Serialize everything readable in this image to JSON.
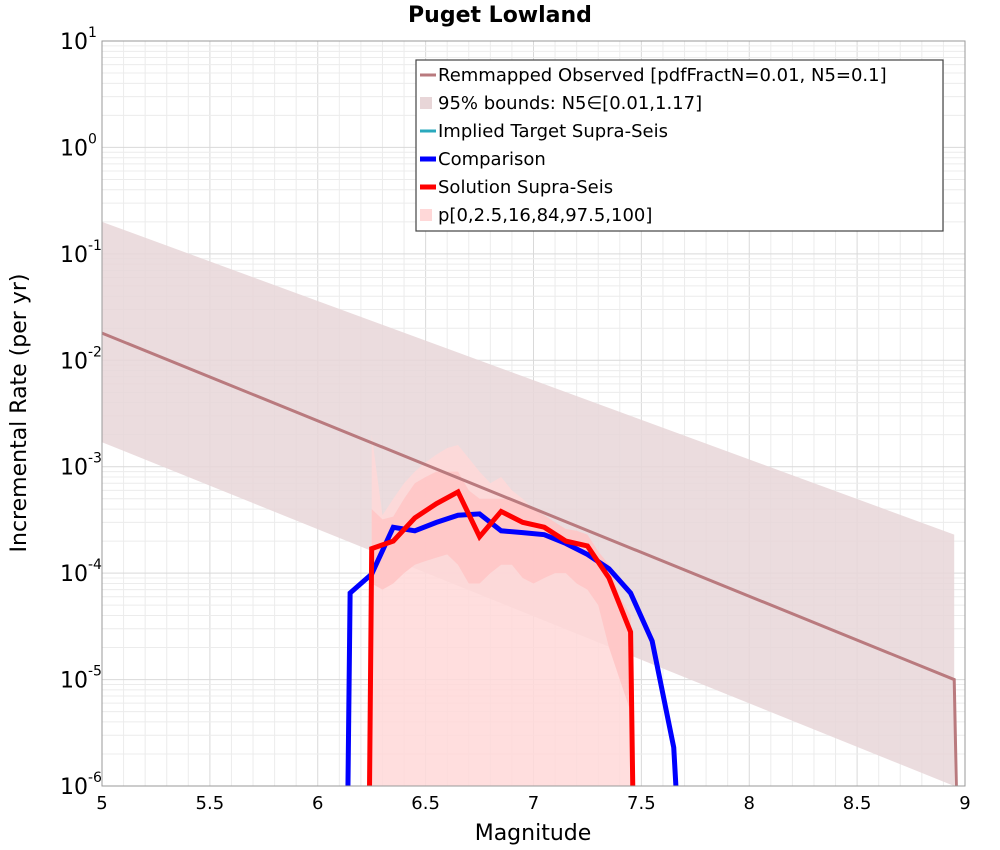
{
  "chart_data": {
    "type": "line",
    "title": "Puget Lowland",
    "xlabel": "Magnitude",
    "ylabel": "Incremental Rate (per yr)",
    "xlim": [
      5,
      9
    ],
    "ylim": [
      1e-06,
      10
    ],
    "y_scale": "log",
    "grid": true,
    "legend_placement": "top-right",
    "x_ticks": [
      "5",
      "5.5",
      "6",
      "6.5",
      "7",
      "7.5",
      "8",
      "8.5",
      "9"
    ],
    "y_ticks": [
      {
        "base": "10",
        "exp": "-6",
        "value": 1e-06
      },
      {
        "base": "10",
        "exp": "-5",
        "value": 1e-05
      },
      {
        "base": "10",
        "exp": "-4",
        "value": 0.0001
      },
      {
        "base": "10",
        "exp": "-3",
        "value": 0.001
      },
      {
        "base": "10",
        "exp": "-2",
        "value": 0.01
      },
      {
        "base": "10",
        "exp": "-1",
        "value": 0.1
      },
      {
        "base": "10",
        "exp": "0",
        "value": 1
      },
      {
        "base": "10",
        "exp": "1",
        "value": 10
      }
    ],
    "legend": [
      {
        "label": "Remmapped Observed [pdfFractN=0.01, N5=0.1]",
        "kind": "line",
        "color": "#b97a7e",
        "width": 3
      },
      {
        "label": "95% bounds: N5∈[0.01,1.17]",
        "kind": "band",
        "color": "#e8d6d8"
      },
      {
        "label": "Implied Target Supra-Seis",
        "kind": "line",
        "color": "#2aa9bd",
        "width": 3
      },
      {
        "label": "Comparison",
        "kind": "line",
        "color": "#0000ff",
        "width": 5
      },
      {
        "label": "Solution Supra-Seis",
        "kind": "line",
        "color": "#ff0000",
        "width": 5
      },
      {
        "label": "p[0,2.5,16,84,97.5,100]",
        "kind": "band",
        "color": "#ffd8d8"
      }
    ],
    "series": [
      {
        "name": "Remmapped Observed [pdfFractN=0.01, N5=0.1]",
        "kind": "line",
        "color": "#b97a7e",
        "width": 3,
        "x": [
          5.0,
          8.95,
          8.96
        ],
        "y": [
          0.018,
          1e-05,
          1e-06
        ]
      },
      {
        "name": "95% bounds: N5∈[0.01,1.17]",
        "kind": "band",
        "color": "#e8d6d8",
        "x": [
          5.0,
          8.95
        ],
        "lower": [
          0.0017,
          1e-06
        ],
        "upper": [
          0.2,
          0.00023
        ]
      },
      {
        "name": "p[0,2.5,16,84,97.5,100]",
        "kind": "band",
        "color": "#ffd8d8",
        "x": [
          6.25,
          6.3,
          6.35,
          6.4,
          6.45,
          6.5,
          6.55,
          6.6,
          6.65,
          6.7,
          6.75,
          6.8,
          6.85,
          6.9,
          6.95,
          7.0,
          7.05,
          7.1,
          7.15,
          7.2,
          7.25,
          7.3,
          7.35,
          7.4,
          7.45
        ],
        "lower": [
          1e-06,
          1e-06,
          1e-06,
          1e-06,
          1e-06,
          1e-06,
          1e-06,
          1e-06,
          1e-06,
          1e-06,
          1e-06,
          1e-06,
          1e-06,
          1e-06,
          1e-06,
          1e-06,
          1e-06,
          1e-06,
          1e-06,
          1e-06,
          1e-06,
          1e-06,
          1e-06,
          1e-06,
          1e-06
        ],
        "upper": [
          0.002,
          0.00035,
          0.0005,
          0.0007,
          0.0009,
          0.0011,
          0.0013,
          0.0015,
          0.0016,
          0.0012,
          0.0009,
          0.0007,
          0.0008,
          0.0006,
          0.0005,
          0.0004,
          0.0003,
          0.00025,
          0.0002,
          0.0002,
          0.00018,
          0.00012,
          8e-05,
          5e-05,
          3e-05
        ]
      },
      {
        "name": "p[0,2.5,16,84,97.5,100]",
        "kind": "band",
        "color": "#ffc4c4",
        "x": [
          6.25,
          6.3,
          6.35,
          6.4,
          6.45,
          6.5,
          6.55,
          6.6,
          6.65,
          6.7,
          6.75,
          6.8,
          6.85,
          6.9,
          6.95,
          7.0,
          7.05,
          7.1,
          7.15,
          7.2,
          7.25,
          7.3,
          7.35,
          7.4,
          7.45
        ],
        "lower": [
          8e-05,
          7e-05,
          8e-05,
          0.0001,
          0.00012,
          0.00013,
          0.00014,
          0.00015,
          0.00012,
          8e-05,
          8e-05,
          0.0001,
          0.00012,
          0.00012,
          9e-05,
          8e-05,
          9e-05,
          0.0001,
          0.0001,
          8e-05,
          7e-05,
          5e-05,
          2e-05,
          1e-05,
          5e-06
        ],
        "upper": [
          0.0004,
          0.00032,
          0.00034,
          0.0005,
          0.0007,
          0.0008,
          0.0009,
          0.0009,
          0.0009,
          0.0006,
          0.0005,
          0.0005,
          0.0005,
          0.0005,
          0.00045,
          0.0004,
          0.00035,
          0.0003,
          0.00026,
          0.00025,
          0.00023,
          0.00016,
          0.00012,
          6e-05,
          4e-05
        ]
      },
      {
        "name": "Comparison",
        "kind": "line",
        "color": "#0000ff",
        "width": 5,
        "x": [
          6.14,
          6.15,
          6.25,
          6.35,
          6.45,
          6.55,
          6.65,
          6.75,
          6.85,
          6.95,
          7.05,
          7.15,
          7.25,
          7.35,
          7.45,
          7.55,
          7.65,
          7.66
        ],
        "y": [
          1e-06,
          6.5e-05,
          9.8e-05,
          0.00027,
          0.00025,
          0.0003,
          0.00035,
          0.00036,
          0.00025,
          0.00024,
          0.00023,
          0.00019,
          0.00015,
          0.00011,
          6.5e-05,
          2.3e-05,
          2.3e-06,
          1e-06
        ]
      },
      {
        "name": "Solution Supra-Seis",
        "kind": "line",
        "color": "#ff0000",
        "width": 5,
        "x": [
          6.24,
          6.25,
          6.35,
          6.45,
          6.55,
          6.65,
          6.75,
          6.85,
          6.95,
          7.05,
          7.15,
          7.25,
          7.35,
          7.45,
          7.46
        ],
        "y": [
          1e-06,
          0.00017,
          0.0002,
          0.00033,
          0.00045,
          0.00058,
          0.00022,
          0.00038,
          0.0003,
          0.00027,
          0.0002,
          0.00018,
          9e-05,
          2.8e-05,
          1e-06
        ]
      }
    ]
  }
}
